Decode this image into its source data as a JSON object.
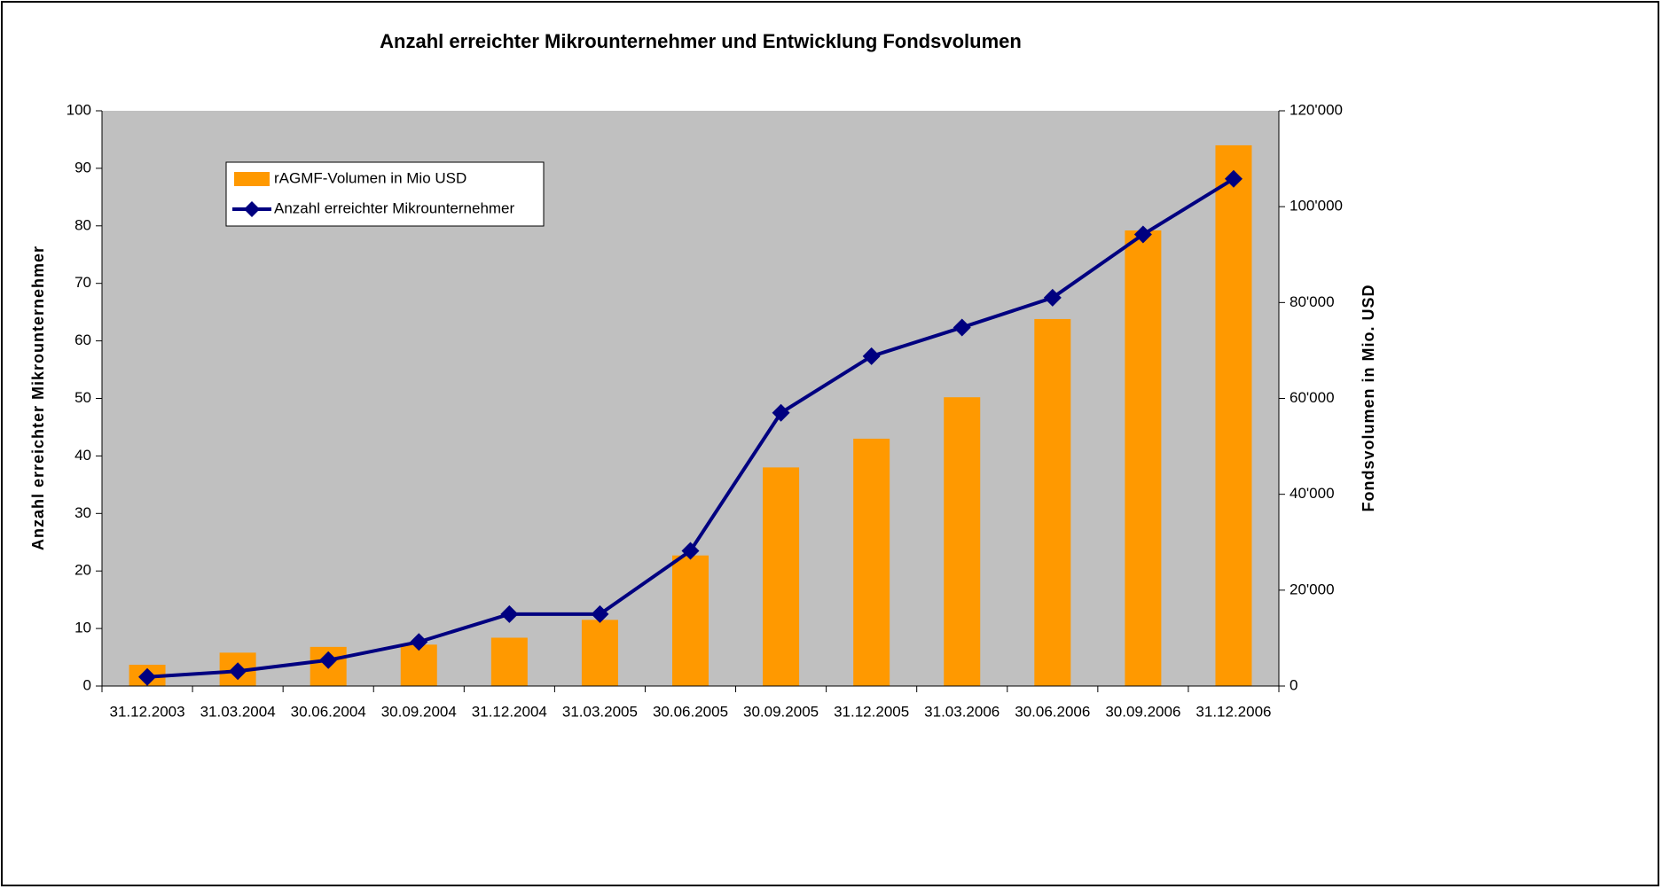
{
  "chart_data": {
    "type": "bar",
    "title": "Anzahl erreichter Mikrounternehmer und Entwicklung Fondsvolumen",
    "ylabel": "Anzahl erreichter Mikrounternehmer",
    "y2label": "Fondsvolumen in Mio. USD",
    "categories": [
      "31.12.2003",
      "31.03.2004",
      "30.06.2004",
      "30.09.2004",
      "31.12.2004",
      "31.03.2005",
      "30.06.2005",
      "30.09.2005",
      "31.12.2005",
      "31.03.2006",
      "30.06.2006",
      "30.09.2006",
      "31.12.2006"
    ],
    "series": [
      {
        "name": "rAGMF-Volumen in Mio USD",
        "type": "bar",
        "color": "#ff9900",
        "values": [
          3.7,
          5.8,
          6.8,
          7.2,
          8.4,
          11.5,
          22.7,
          38,
          43,
          50.2,
          63.8,
          79.2,
          94
        ]
      },
      {
        "name": "Anzahl erreichter Mikrounternehmer",
        "type": "line",
        "axis": "y2",
        "color": "#000080",
        "values": [
          1900,
          3100,
          5400,
          9200,
          15000,
          15000,
          28200,
          57000,
          68800,
          74800,
          81000,
          94200,
          105800
        ]
      }
    ],
    "ylim": [
      0,
      100
    ],
    "yticks": [
      0,
      10,
      20,
      30,
      40,
      50,
      60,
      70,
      80,
      90,
      100
    ],
    "y2lim": [
      0,
      120000
    ],
    "y2ticks": [
      0,
      {
        "value": 20000,
        "label": "20'000"
      },
      {
        "value": 40000,
        "label": "40'000"
      },
      {
        "value": 60000,
        "label": "60'000"
      },
      {
        "value": 80000,
        "label": "80'000"
      },
      {
        "value": 100000,
        "label": "100'000"
      },
      {
        "value": 120000,
        "label": "120'000"
      }
    ],
    "plot_background": "#c0c0c0"
  }
}
